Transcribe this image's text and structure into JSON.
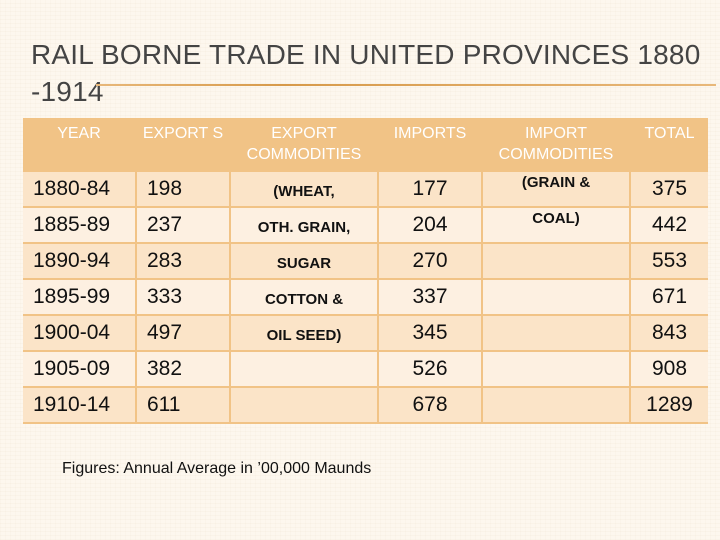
{
  "title": "RAIL BORNE TRADE IN UNITED PROVINCES 1880 -1914",
  "headers": {
    "year": "YEAR",
    "exports": "EXPORT S",
    "export_commodities": "EXPORT COMMODITIES",
    "imports": "IMPORTS",
    "import_commodities": "IMPORT COMMODITIES",
    "total": "TOTAL"
  },
  "rows": [
    {
      "year": "1880-84",
      "exports": "198",
      "export_commodity": "(WHEAT,",
      "imports": "177",
      "import_commodity": "(GRAIN &",
      "total": "375"
    },
    {
      "year": "1885-89",
      "exports": "237",
      "export_commodity": "OTH. GRAIN,",
      "imports": "204",
      "import_commodity": "COAL)",
      "total": "442"
    },
    {
      "year": "1890-94",
      "exports": "283",
      "export_commodity": "SUGAR",
      "imports": "270",
      "import_commodity": "",
      "total": "553"
    },
    {
      "year": "1895-99",
      "exports": "333",
      "export_commodity": "COTTON &",
      "imports": "337",
      "import_commodity": "",
      "total": "671"
    },
    {
      "year": "1900-04",
      "exports": "497",
      "export_commodity": "OIL SEED)",
      "imports": "345",
      "import_commodity": "",
      "total": "843"
    },
    {
      "year": "1905-09",
      "exports": "382",
      "export_commodity": "",
      "imports": "526",
      "import_commodity": "",
      "total": "908"
    },
    {
      "year": "1910-14",
      "exports": "611",
      "export_commodity": "",
      "imports": "678",
      "import_commodity": "",
      "total": "1289"
    }
  ],
  "footnote": "Figures: Annual Average in ’00,000 Maunds"
}
